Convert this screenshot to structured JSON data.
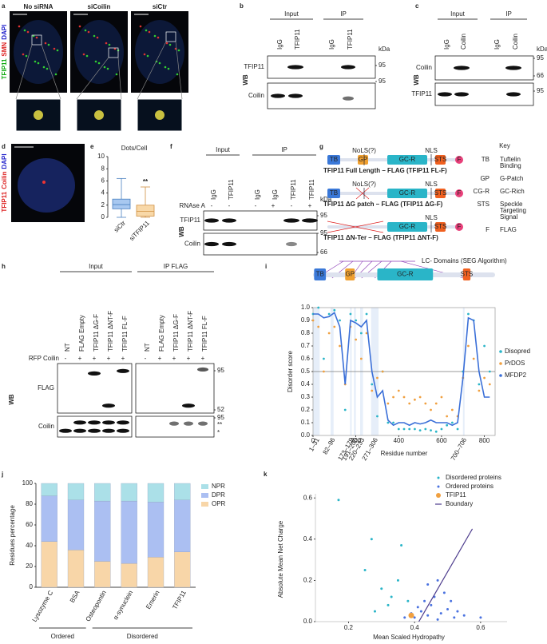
{
  "panel_labels": [
    "a",
    "b",
    "c",
    "d",
    "e",
    "f",
    "g",
    "h",
    "i",
    "j",
    "k"
  ],
  "panels": {
    "a": {
      "columns": [
        "No siRNA",
        "siCoilin",
        "siCtr"
      ],
      "channels": [
        "TFIP11",
        "SMN",
        "DAPI"
      ]
    },
    "b": {
      "groups": [
        "Input",
        "IP"
      ],
      "lanes": [
        "IgG",
        "TFIP11",
        "IgG",
        "TFIP11"
      ],
      "unit": "kDa",
      "method": "WB",
      "rows": [
        "TFIP11",
        "Coilin"
      ],
      "markers": [
        "95",
        "95"
      ]
    },
    "c": {
      "groups": [
        "Input",
        "IP"
      ],
      "lanes": [
        "IgG",
        "Coilin",
        "IgG",
        "Coilin"
      ],
      "unit": "kDa",
      "method": "WB",
      "rows": [
        "Coilin",
        "TFIP11"
      ],
      "markers": [
        "95",
        "66",
        "95"
      ]
    },
    "d": {
      "channels": [
        "TFIP11",
        "Coilin",
        "DAPI"
      ]
    },
    "f": {
      "groups": [
        "Input",
        "IP"
      ],
      "lanes": [
        "IgG",
        "TFIP11",
        "IgG",
        "IgG",
        "TFIP11",
        "TFIP11"
      ],
      "treatment": "RNAse A",
      "signs": [
        "-",
        "-",
        "-",
        "+",
        "-",
        "+"
      ],
      "unit": "kDa",
      "method": "WB",
      "rows": [
        "TFIP11",
        "Coilin"
      ],
      "markers": [
        "95",
        "95",
        "66"
      ]
    },
    "g": {
      "constructs": [
        {
          "name": "TFIP11 Full Length – FLAG (TFIP11 FL-F)",
          "domains": [
            "TB",
            "GP",
            "NoLS(?)",
            "GC-R",
            "NLS",
            "STS",
            "F"
          ]
        },
        {
          "name": "TFIP11 ΔG patch – FLAG (TFIP11 ΔG-F)",
          "domains": [
            "TB",
            "NoLS(?)",
            "GC-R",
            "NLS",
            "STS",
            "F"
          ]
        },
        {
          "name": "TFIP11 ΔN-Ter – FLAG (TFIP11 ΔNT-F)",
          "domains": [
            "GC-R",
            "NLS",
            "STS",
            "F"
          ]
        }
      ],
      "key_title": "Key",
      "key": [
        {
          "abbr": "TB",
          "text": [
            "Tuftelin",
            "Binding"
          ],
          "color": "#3a78d8"
        },
        {
          "abbr": "GP",
          "text": [
            "G-Patch"
          ],
          "color": "#f0a030"
        },
        {
          "abbr": "CG-R",
          "text": [
            "GC-Rich"
          ],
          "color": "#2ab5c8"
        },
        {
          "abbr": "STS",
          "text": [
            "Speckle",
            "Targeting",
            "Signal"
          ],
          "color": "#f06020"
        },
        {
          "abbr": "F",
          "text": [
            "FLAG"
          ],
          "color": "#e8407a"
        }
      ]
    },
    "h": {
      "groups": [
        "Input",
        "IP FLAG"
      ],
      "lanes": [
        "NT",
        "FLAG Empty",
        "TFIP11 ΔG-F",
        "TFIP11 ΔNT-F",
        "TFIP11 FL-F",
        "NT",
        "FLAG Empty",
        "TFIP11 ΔG-F",
        "TFIP11 ΔNT-F",
        "TFIP11 FL-F"
      ],
      "treatment": "RFP Coilin",
      "signs": [
        "-",
        "+",
        "+",
        "+",
        "+",
        "-",
        "+",
        "+",
        "+",
        "+"
      ],
      "method": "WB",
      "rows": [
        "FLAG",
        "Coilin"
      ],
      "markers": [
        "95",
        "52",
        "95"
      ],
      "annotations": [
        "**",
        "*"
      ]
    }
  },
  "chart_data": [
    {
      "type": "box",
      "title": "Dots/Cell",
      "categories": [
        "siCtr",
        "siTFIP11"
      ],
      "boxes": [
        {
          "min": 0,
          "q1": 1.4,
          "median": 2.1,
          "q3": 3,
          "max": 6.4,
          "fill": "#a8c8f0",
          "stroke": "#4a80c0"
        },
        {
          "min": 0,
          "q1": 0.2,
          "median": 1,
          "q3": 2,
          "max": 5,
          "fill": "#f8d8a8",
          "stroke": "#d09040"
        }
      ],
      "annotation": "**",
      "ylim": [
        0,
        10
      ],
      "yticks": [
        0,
        2,
        4,
        6,
        8,
        10
      ]
    },
    {
      "type": "line",
      "xlabel": "Residue number",
      "ylabel": "Disorder score",
      "x": [
        0,
        25,
        50,
        75,
        100,
        125,
        150,
        175,
        200,
        225,
        250,
        275,
        300,
        325,
        350,
        375,
        400,
        425,
        450,
        475,
        500,
        525,
        550,
        575,
        600,
        625,
        650,
        675,
        700,
        725,
        750,
        775,
        800,
        825
      ],
      "series": [
        {
          "name": "Disopred",
          "color": "#2ab5c8",
          "style": "points",
          "values": [
            0.95,
            1,
            0.6,
            0.95,
            0.98,
            0.9,
            0.2,
            0.95,
            0.9,
            0.8,
            0.95,
            0.4,
            0.15,
            0.5,
            0.1,
            0.1,
            0.05,
            0.05,
            0.05,
            0.05,
            0.04,
            0.05,
            0.04,
            0.03,
            0.05,
            0.08,
            0.1,
            0.05,
            0.5,
            0.95,
            0.9,
            0.4,
            0.7,
            0.5
          ]
        },
        {
          "name": "PrDOS",
          "color": "#f0a040",
          "style": "points",
          "values": [
            0.9,
            0.85,
            0.5,
            0.8,
            0.85,
            0.7,
            0.4,
            0.85,
            0.75,
            0.6,
            0.8,
            0.35,
            0.45,
            0.5,
            0.25,
            0.3,
            0.35,
            0.3,
            0.25,
            0.28,
            0.3,
            0.25,
            0.2,
            0.25,
            0.3,
            0.15,
            0.2,
            0.15,
            0.45,
            0.7,
            0.6,
            0.35,
            0.45,
            0.4
          ]
        },
        {
          "name": "MFDP2",
          "color": "#3a6fd8",
          "style": "line",
          "values": [
            0.95,
            0.95,
            0.92,
            0.93,
            0.96,
            0.85,
            0.4,
            0.9,
            0.88,
            0.85,
            0.9,
            0.5,
            0.3,
            0.35,
            0.12,
            0.08,
            0.1,
            0.1,
            0.08,
            0.1,
            0.09,
            0.1,
            0.12,
            0.1,
            0.1,
            0.1,
            0.08,
            0.1,
            0.45,
            0.92,
            0.9,
            0.5,
            0.3,
            0.3
          ]
        }
      ],
      "threshold": 0.5,
      "domains_title": "LC- Domains (SEG Algorithm)",
      "domains": [
        {
          "name": "TB",
          "start": 5,
          "end": 60,
          "color": "#3a78d8"
        },
        {
          "name": "GP",
          "start": 150,
          "end": 195,
          "color": "#f0a030"
        },
        {
          "name": "GC-R",
          "start": 300,
          "end": 560,
          "color": "#2ab5c8"
        },
        {
          "name": "STS",
          "start": 700,
          "end": 735,
          "color": "#f06020"
        }
      ],
      "lc_regions": [
        {
          "label": "1–31",
          "start": 1,
          "end": 31
        },
        {
          "label": "82–96",
          "start": 82,
          "end": 96
        },
        {
          "label": "173–179",
          "start": 173,
          "end": 179
        },
        {
          "label": "191–200",
          "start": 191,
          "end": 200
        },
        {
          "label": "220–233",
          "start": 220,
          "end": 233
        },
        {
          "label": "271–306",
          "start": 271,
          "end": 306
        },
        {
          "label": "700–706",
          "start": 700,
          "end": 706
        }
      ],
      "xlim": [
        0,
        850
      ],
      "xticks": [
        0,
        200,
        400,
        600,
        800
      ],
      "ylim": [
        0,
        1
      ],
      "yticks": [
        {
          "value": 0,
          "label": "0.0"
        },
        0.1,
        0.2,
        0.3,
        0.4,
        0.5,
        0.6,
        0.7,
        0.8,
        0.9,
        {
          "value": 1,
          "label": "1.0"
        }
      ]
    },
    {
      "type": "bar",
      "stacked": true,
      "ylabel": "Residues percentage",
      "categories": [
        "Lysozyme C",
        "BSA",
        "Osteopontin",
        "α-synuclein",
        "Emerin",
        "TFIP11"
      ],
      "series": [
        {
          "name": "OPR",
          "color": "#f8d6a8",
          "values": [
            44,
            36,
            25,
            23,
            29,
            34
          ]
        },
        {
          "name": "DPR",
          "color": "#abbff2",
          "values": [
            44,
            48,
            58,
            60,
            53,
            50
          ]
        },
        {
          "name": "NPR",
          "color": "#abe0e8",
          "values": [
            12,
            16,
            17,
            17,
            18,
            16
          ]
        }
      ],
      "groups": [
        {
          "label": "Ordered",
          "categories": [
            "Lysozyme C",
            "BSA"
          ]
        },
        {
          "label": "Disordered",
          "categories": [
            "Osteopontin",
            "α-synuclein",
            "Emerin",
            "TFIP11"
          ]
        }
      ],
      "ylim": [
        0,
        100
      ],
      "yticks": [
        0,
        20,
        40,
        60,
        80,
        100
      ]
    },
    {
      "type": "scatter",
      "xlabel": "Mean Scaled Hydropathy",
      "ylabel": "Absolute Mean Net Charge",
      "series": [
        {
          "name": "Disordered proteins",
          "color": "#2ab5c8",
          "style": "points",
          "x": [
            0.17,
            0.27,
            0.36,
            0.25,
            0.3,
            0.33,
            0.35,
            0.38,
            0.32,
            0.28
          ],
          "values": [
            0.59,
            0.4,
            0.37,
            0.25,
            0.16,
            0.12,
            0.2,
            0.1,
            0.08,
            0.05
          ]
        },
        {
          "name": "Ordered proteins",
          "color": "#4a72e0",
          "style": "points",
          "x": [
            0.4,
            0.42,
            0.44,
            0.45,
            0.47,
            0.48,
            0.5,
            0.52,
            0.46,
            0.43,
            0.41,
            0.49,
            0.53,
            0.55,
            0.44,
            0.39,
            0.37,
            0.51,
            0.47,
            0.6
          ],
          "values": [
            0.02,
            0.05,
            0.03,
            0.08,
            0.01,
            0.04,
            0.06,
            0.02,
            0.12,
            0.1,
            0.07,
            0.14,
            0.05,
            0.03,
            0.18,
            0.04,
            0.02,
            0.1,
            0.2,
            0.02
          ]
        },
        {
          "name": "TFIP11",
          "color": "#f0a040",
          "style": "big-point",
          "x": [
            0.39
          ],
          "values": [
            0.03
          ]
        },
        {
          "name": "Boundary",
          "color": "#4b3a8c",
          "style": "line",
          "x": [
            0.413,
            0.575
          ],
          "values": [
            0,
            0.45
          ]
        }
      ],
      "xlim": [
        0.1,
        0.68
      ],
      "xticks": [
        0.2,
        0.4,
        0.6
      ],
      "ylim": [
        0,
        0.62
      ],
      "yticks": [
        {
          "value": 0,
          "label": "0.0"
        },
        0.2,
        0.4,
        0.6
      ]
    }
  ]
}
